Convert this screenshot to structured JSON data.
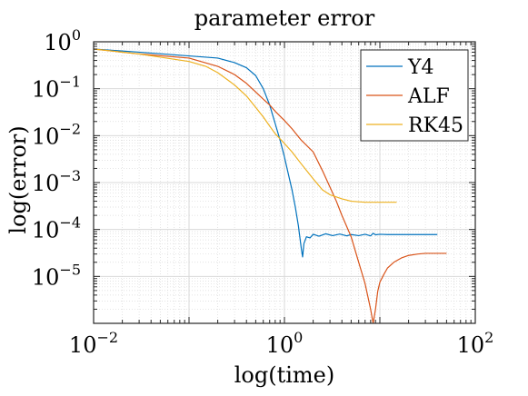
{
  "chart_data": {
    "type": "line",
    "title": "parameter error",
    "xlabel": "log(time)",
    "ylabel": "log(error)",
    "xscale": "log",
    "yscale": "log",
    "xlim": [
      0.01,
      100
    ],
    "ylim": [
      1e-06,
      1
    ],
    "grid": true,
    "minor_grid": true,
    "legend": "top-right",
    "x_ticks": [
      {
        "value": 0.01,
        "base": "10",
        "exp": "−2"
      },
      {
        "value": 1,
        "base": "10",
        "exp": "0"
      },
      {
        "value": 100,
        "base": "10",
        "exp": "2"
      }
    ],
    "y_ticks": [
      {
        "value": 1,
        "base": "10",
        "exp": "0"
      },
      {
        "value": 0.1,
        "base": "10",
        "exp": "−1"
      },
      {
        "value": 0.01,
        "base": "10",
        "exp": "−2"
      },
      {
        "value": 0.001,
        "base": "10",
        "exp": "−3"
      },
      {
        "value": 0.0001,
        "base": "10",
        "exp": "−4"
      },
      {
        "value": 1e-05,
        "base": "10",
        "exp": "−5"
      }
    ],
    "series": [
      {
        "name": "Y4",
        "color": "#0072BD",
        "points": [
          [
            0.01,
            0.7
          ],
          [
            0.03,
            0.6
          ],
          [
            0.1,
            0.5
          ],
          [
            0.15,
            0.47
          ],
          [
            0.2,
            0.45
          ],
          [
            0.3,
            0.36
          ],
          [
            0.4,
            0.28
          ],
          [
            0.5,
            0.19
          ],
          [
            0.6,
            0.1
          ],
          [
            0.7,
            0.045
          ],
          [
            0.8,
            0.018
          ],
          [
            0.9,
            0.008
          ],
          [
            1.0,
            0.0035
          ],
          [
            1.1,
            0.0015
          ],
          [
            1.2,
            0.0007
          ],
          [
            1.3,
            0.0003
          ],
          [
            1.4,
            0.00012
          ],
          [
            1.5,
            4e-05
          ],
          [
            1.55,
            2.6e-05
          ],
          [
            1.6,
            5e-05
          ],
          [
            1.7,
            7e-05
          ],
          [
            1.85,
            6.6e-05
          ],
          [
            2.0,
            7.9e-05
          ],
          [
            2.3,
            7.2e-05
          ],
          [
            2.7,
            8.1e-05
          ],
          [
            3.2,
            7.4e-05
          ],
          [
            3.8,
            8e-05
          ],
          [
            4.5,
            7.3e-05
          ],
          [
            5.0,
            7.8e-05
          ],
          [
            6.0,
            7.4e-05
          ],
          [
            7.0,
            7.9e-05
          ],
          [
            8.0,
            7.3e-05
          ],
          [
            8.5,
            8.3e-05
          ],
          [
            9.0,
            7.7e-05
          ],
          [
            10.0,
            7.9e-05
          ],
          [
            12,
            7.8e-05
          ],
          [
            15,
            7.8e-05
          ],
          [
            20,
            7.8e-05
          ],
          [
            30,
            7.8e-05
          ],
          [
            40,
            7.8e-05
          ]
        ]
      },
      {
        "name": "ALF",
        "color": "#D95319",
        "points": [
          [
            0.01,
            0.7
          ],
          [
            0.03,
            0.55
          ],
          [
            0.1,
            0.45
          ],
          [
            0.2,
            0.3
          ],
          [
            0.3,
            0.2
          ],
          [
            0.4,
            0.13
          ],
          [
            0.5,
            0.085
          ],
          [
            0.6,
            0.06
          ],
          [
            0.7,
            0.045
          ],
          [
            0.8,
            0.033
          ],
          [
            0.9,
            0.026
          ],
          [
            1.0,
            0.021
          ],
          [
            1.2,
            0.014
          ],
          [
            1.5,
            0.008
          ],
          [
            2.0,
            0.0045
          ],
          [
            2.5,
            0.0018
          ],
          [
            3.0,
            0.0008
          ],
          [
            3.5,
            0.0004
          ],
          [
            4.0,
            0.0002
          ],
          [
            5.0,
            7e-05
          ],
          [
            6.0,
            2e-05
          ],
          [
            7.0,
            7e-06
          ],
          [
            8.0,
            2e-06
          ],
          [
            8.5,
            1e-06
          ],
          [
            9.0,
            2e-06
          ],
          [
            9.5,
            4.8e-06
          ],
          [
            10.0,
            7.5e-06
          ],
          [
            11,
            1.1e-05
          ],
          [
            12,
            1.5e-05
          ],
          [
            14,
            2e-05
          ],
          [
            17,
            2.5e-05
          ],
          [
            20,
            2.8e-05
          ],
          [
            25,
            3e-05
          ],
          [
            30,
            3.1e-05
          ],
          [
            40,
            3.1e-05
          ],
          [
            50,
            3.1e-05
          ]
        ]
      },
      {
        "name": "RK45",
        "color": "#EDB120",
        "points": [
          [
            0.01,
            0.7
          ],
          [
            0.03,
            0.55
          ],
          [
            0.1,
            0.38
          ],
          [
            0.15,
            0.3
          ],
          [
            0.2,
            0.22
          ],
          [
            0.3,
            0.12
          ],
          [
            0.4,
            0.07
          ],
          [
            0.5,
            0.04
          ],
          [
            0.6,
            0.025
          ],
          [
            0.7,
            0.016
          ],
          [
            0.8,
            0.011
          ],
          [
            1.0,
            0.0068
          ],
          [
            1.2,
            0.0045
          ],
          [
            1.5,
            0.0025
          ],
          [
            2.0,
            0.0012
          ],
          [
            2.5,
            0.0007
          ],
          [
            3.0,
            0.00055
          ],
          [
            4.0,
            0.00045
          ],
          [
            5.0,
            0.0004
          ],
          [
            7.0,
            0.00038
          ],
          [
            10.0,
            0.00038
          ],
          [
            15.0,
            0.00038
          ]
        ]
      }
    ]
  }
}
